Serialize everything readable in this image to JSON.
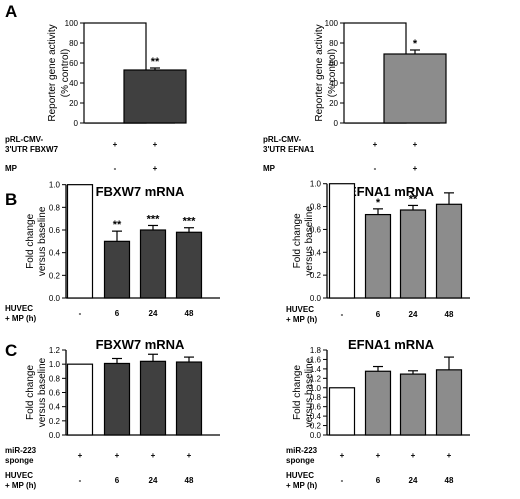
{
  "panels": {
    "A": {
      "letter": "A",
      "charts": [
        {
          "type": "bar",
          "title": "",
          "ylabel": [
            "Reporter gene activity",
            "(% control)"
          ],
          "ylim": [
            0,
            110
          ],
          "yticks": [
            0,
            20,
            40,
            60,
            80,
            100
          ],
          "values": [
            100,
            53
          ],
          "errors": [
            0,
            2
          ],
          "fills": [
            "#ffffff",
            "#404040"
          ],
          "significance": [
            "",
            "**"
          ],
          "conditions": [
            {
              "label": [
                "pRL-CMV-",
                "3'UTR FBXW7"
              ],
              "cells": [
                "+",
                "+"
              ]
            },
            {
              "label": [
                "MP"
              ],
              "cells": [
                "-",
                "+"
              ]
            }
          ]
        },
        {
          "type": "bar",
          "title": "",
          "ylabel": [
            "Reporter gene activity",
            "(% control)"
          ],
          "ylim": [
            0,
            110
          ],
          "yticks": [
            0,
            20,
            40,
            60,
            80,
            100
          ],
          "values": [
            100,
            69
          ],
          "errors": [
            0,
            4
          ],
          "fills": [
            "#ffffff",
            "#8c8c8c"
          ],
          "significance": [
            "",
            "*"
          ],
          "conditions": [
            {
              "label": [
                "pRL-CMV-",
                "3'UTR EFNA1"
              ],
              "cells": [
                "+",
                "+"
              ]
            },
            {
              "label": [
                "MP"
              ],
              "cells": [
                "-",
                "+"
              ]
            }
          ]
        }
      ]
    },
    "B": {
      "letter": "B",
      "charts": [
        {
          "type": "bar",
          "title": "FBXW7 mRNA",
          "ylabel": [
            "Fold change",
            "versus baseline"
          ],
          "ylim": [
            0,
            1.05
          ],
          "yticks": [
            "0.0",
            "0.2",
            "0.4",
            "0.6",
            "0.8",
            "1.0"
          ],
          "values": [
            1.0,
            0.5,
            0.6,
            0.58
          ],
          "errors": [
            0,
            0.09,
            0.04,
            0.04
          ],
          "fills": [
            "#ffffff",
            "#404040",
            "#404040",
            "#404040"
          ],
          "significance": [
            "",
            "**",
            "***",
            "***"
          ],
          "conditions": [
            {
              "label": [
                "HUVEC",
                "+ MP (h)"
              ],
              "cells": [
                "-",
                "6",
                "24",
                "48"
              ]
            }
          ]
        },
        {
          "type": "bar",
          "title": "EFNA1 mRNA",
          "ylabel": [
            "Fold change",
            "versus baseline"
          ],
          "ylim": [
            0,
            1.05
          ],
          "yticks": [
            "0.0",
            "0.2",
            "0.4",
            "0.6",
            "0.8",
            "1.0"
          ],
          "values": [
            1.0,
            0.73,
            0.77,
            0.82
          ],
          "errors": [
            0,
            0.05,
            0.04,
            0.1
          ],
          "fills": [
            "#ffffff",
            "#8c8c8c",
            "#8c8c8c",
            "#8c8c8c"
          ],
          "significance": [
            "",
            "*",
            "**",
            ""
          ],
          "conditions": [
            {
              "label": [
                "HUVEC",
                "+ MP (h)"
              ],
              "cells": [
                "-",
                "6",
                "24",
                "48"
              ]
            }
          ]
        }
      ]
    },
    "C": {
      "letter": "C",
      "charts": [
        {
          "type": "bar",
          "title": "FBXW7 mRNA",
          "ylabel": [
            "Fold change",
            "versus baseline"
          ],
          "ylim": [
            0,
            1.2
          ],
          "yticks": [
            "0.0",
            "0.2",
            "0.4",
            "0.6",
            "0.8",
            "1.0",
            "1.2"
          ],
          "values": [
            1.0,
            1.01,
            1.04,
            1.03
          ],
          "errors": [
            0,
            0.07,
            0.1,
            0.07
          ],
          "fills": [
            "#ffffff",
            "#404040",
            "#404040",
            "#404040"
          ],
          "significance": [
            "",
            "",
            "",
            ""
          ],
          "conditions": [
            {
              "label": [
                "miR-223",
                "sponge"
              ],
              "cells": [
                "+",
                "+",
                "+",
                "+"
              ]
            },
            {
              "label": [
                "HUVEC",
                "+ MP (h)"
              ],
              "cells": [
                "-",
                "6",
                "24",
                "48"
              ]
            }
          ]
        },
        {
          "type": "bar",
          "title": "EFNA1 mRNA",
          "ylabel": [
            "Fold change",
            "versus baseline"
          ],
          "ylim": [
            0,
            1.8
          ],
          "yticks": [
            "0.0",
            "0.2",
            "0.4",
            "0.6",
            "0.8",
            "1.0",
            "1.2",
            "1.4",
            "1.6",
            "1.8"
          ],
          "values": [
            1.0,
            1.35,
            1.29,
            1.38
          ],
          "errors": [
            0,
            0.1,
            0.07,
            0.27
          ],
          "fills": [
            "#ffffff",
            "#8c8c8c",
            "#8c8c8c",
            "#8c8c8c"
          ],
          "significance": [
            "",
            "",
            "",
            ""
          ],
          "conditions": [
            {
              "label": [
                "miR-223",
                "sponge"
              ],
              "cells": [
                "+",
                "+",
                "+",
                "+"
              ]
            },
            {
              "label": [
                "HUVEC",
                "+ MP (h)"
              ],
              "cells": [
                "-",
                "6",
                "24",
                "48"
              ]
            }
          ]
        }
      ]
    }
  }
}
